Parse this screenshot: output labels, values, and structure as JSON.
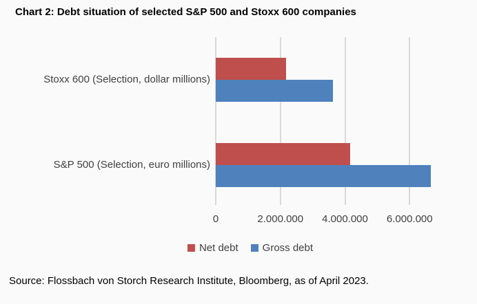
{
  "title": "Chart 2: Debt situation of selected S&P 500 and Stoxx 600 companies",
  "source": "Source: Flossbach von Storch Research Institute, Bloomberg, as of April 2023.",
  "colors": {
    "net_debt": "#be4f4d",
    "gross_debt": "#4f81bd",
    "gridline": "#d9d9d9",
    "background": "#fafafa",
    "label_text": "#404040"
  },
  "chart_data": {
    "type": "bar",
    "orientation": "horizontal",
    "title": "Chart 2: Debt situation of selected S&P 500 and Stoxx 600 companies",
    "categories": [
      "Stoxx 600 (Selection, dollar millions)",
      "S&P 500 (Selection, euro millions)"
    ],
    "series": [
      {
        "name": "Net debt",
        "color": "#be4f4d",
        "values": [
          2180000,
          4160000
        ]
      },
      {
        "name": "Gross debt",
        "color": "#4f81bd",
        "values": [
          3620000,
          6650000
        ]
      }
    ],
    "xlim": [
      0,
      8000000
    ],
    "x_ticks": [
      0,
      2000000,
      4000000,
      6000000
    ],
    "x_tick_labels": [
      "0",
      "2.000.000",
      "4.000.000",
      "6.000.000"
    ],
    "grid": true,
    "legend_position": "bottom"
  }
}
